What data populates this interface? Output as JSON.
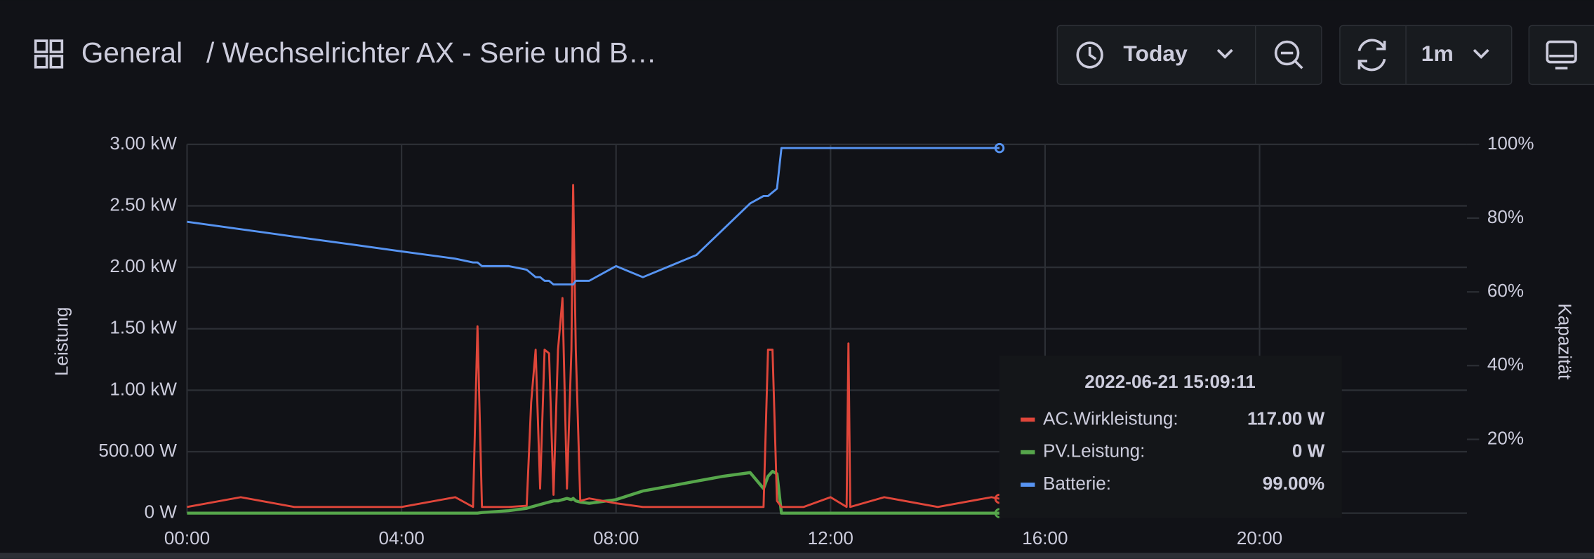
{
  "header": {
    "title": "General",
    "subtitle": "/ Wechselrichter AX - Serie und B…",
    "time_range": "Today",
    "refresh": "1m"
  },
  "chart_data": {
    "type": "line",
    "y_label": "Leistung",
    "y2_label": "Kapazität",
    "x": [
      "00:00",
      "01:00",
      "02:00",
      "03:00",
      "04:00",
      "05:00",
      "05:20",
      "05:25",
      "05:30",
      "06:00",
      "06:20",
      "06:25",
      "06:30",
      "06:35",
      "06:40",
      "06:45",
      "06:50",
      "06:55",
      "07:00",
      "07:05",
      "07:10",
      "07:12",
      "07:15",
      "07:20",
      "07:30",
      "08:00",
      "08:30",
      "09:00",
      "09:30",
      "10:00",
      "10:30",
      "10:45",
      "10:50",
      "10:55",
      "11:00",
      "11:05",
      "11:30",
      "12:00",
      "12:18",
      "12:20",
      "12:22",
      "13:00",
      "14:00",
      "15:00",
      "15:09"
    ],
    "xlim": [
      "00:00",
      "23:52"
    ],
    "xticks": [
      "00:00",
      "04:00",
      "08:00",
      "12:00",
      "16:00",
      "20:00"
    ],
    "ylim": [
      0,
      3000
    ],
    "yticks": [
      {
        "value": 0,
        "label": "0 W"
      },
      {
        "value": 500,
        "label": "500.00 W"
      },
      {
        "value": 1000,
        "label": "1.00 kW"
      },
      {
        "value": 1500,
        "label": "1.50 kW"
      },
      {
        "value": 2000,
        "label": "2.00 kW"
      },
      {
        "value": 2500,
        "label": "2.50 kW"
      },
      {
        "value": 3000,
        "label": "3.00 kW"
      }
    ],
    "y2lim": [
      0,
      100
    ],
    "y2ticks": [
      {
        "value": 20,
        "label": "20%"
      },
      {
        "value": 40,
        "label": "40%"
      },
      {
        "value": 60,
        "label": "60%"
      },
      {
        "value": 80,
        "label": "80%"
      },
      {
        "value": 100,
        "label": "100%"
      }
    ],
    "grid": true,
    "series": [
      {
        "name": "AC.Wirkleistung",
        "color": "#e0463a",
        "values": [
          50,
          130,
          50,
          50,
          50,
          130,
          50,
          1520,
          50,
          50,
          60,
          900,
          1330,
          200,
          1330,
          1300,
          150,
          1330,
          1750,
          200,
          1330,
          2670,
          1330,
          100,
          120,
          80,
          50,
          50,
          50,
          50,
          50,
          50,
          1330,
          1330,
          100,
          50,
          50,
          130,
          50,
          1380,
          50,
          130,
          50,
          130,
          117
        ]
      },
      {
        "name": "PV.Leistung",
        "color": "#56a64b",
        "values": [
          0,
          0,
          0,
          0,
          0,
          0,
          0,
          0,
          5,
          20,
          40,
          50,
          60,
          70,
          80,
          90,
          100,
          100,
          110,
          120,
          110,
          120,
          100,
          90,
          80,
          110,
          180,
          220,
          260,
          300,
          330,
          200,
          300,
          340,
          320,
          0,
          0,
          0,
          0,
          0,
          0,
          0,
          0,
          0,
          0
        ]
      },
      {
        "name": "Batterie",
        "color": "#5794f2",
        "axis": "y2",
        "values": [
          79,
          77,
          75,
          73,
          71,
          69,
          68,
          68,
          67,
          67,
          66,
          65,
          64,
          64,
          63,
          63,
          62,
          62,
          62,
          62,
          62,
          62,
          63,
          63,
          63,
          67,
          64,
          67,
          70,
          77,
          84,
          86,
          86,
          87,
          88,
          99,
          99,
          99,
          99,
          99,
          99,
          99,
          99,
          99,
          99
        ]
      }
    ]
  },
  "tooltip": {
    "title": "2022-06-21 15:09:11",
    "rows": [
      {
        "label": "AC.Wirkleistung:",
        "value": "117.00 W"
      },
      {
        "label": "PV.Leistung:",
        "value": "0 W"
      },
      {
        "label": "Batterie:",
        "value": "99.00%"
      }
    ]
  }
}
